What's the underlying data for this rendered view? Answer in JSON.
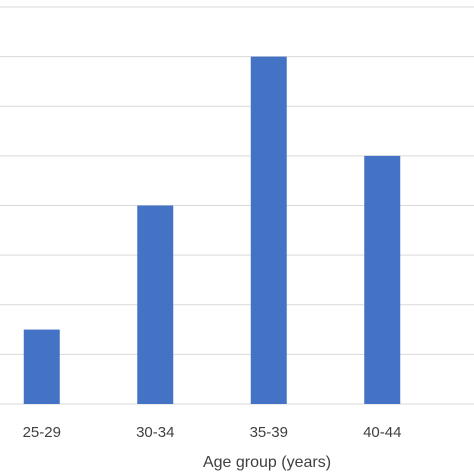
{
  "chart_data": {
    "type": "bar",
    "categories": [
      "25-29",
      "30-34",
      "35-39",
      "40-44"
    ],
    "values": [
      0.75,
      2.0,
      3.5,
      2.5
    ],
    "xlabel": "Age group (years)",
    "ylabel": "",
    "ylim": [
      0,
      4.0
    ],
    "y_gridline_step": 0.5,
    "grid": true,
    "legend": "none",
    "bar_color": "#4472C4",
    "grid_color": "#D9D9D9",
    "text_color": "#404040"
  }
}
